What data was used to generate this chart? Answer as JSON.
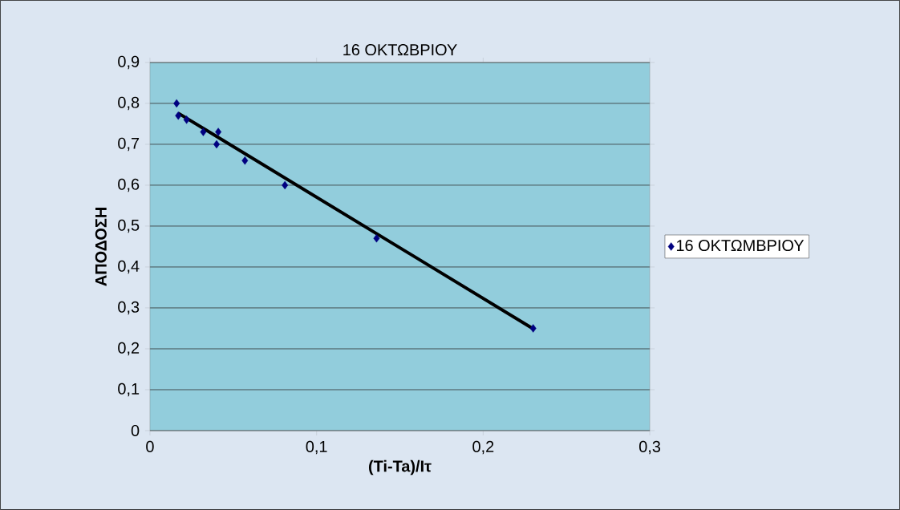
{
  "chart_data": {
    "type": "scatter",
    "title": "16 ΟΚΤΩΒΡΙΟΥ",
    "xlabel": "(Ti-Ta)/Iτ",
    "ylabel": "ΑΠΟΔΟΣΗ",
    "series": [
      {
        "name": "16 ΟΚΤΩΜΒΡΙΟΥ",
        "color": "#000080",
        "marker": "diamond",
        "x": [
          0.016,
          0.017,
          0.022,
          0.032,
          0.041,
          0.04,
          0.057,
          0.081,
          0.136,
          0.23
        ],
        "values": [
          0.8,
          0.77,
          0.76,
          0.73,
          0.73,
          0.7,
          0.66,
          0.6,
          0.47,
          0.25
        ]
      },
      {
        "type": "line",
        "color": "#000000",
        "marker": "none",
        "line_style": "solid",
        "x": [
          0.017,
          0.23
        ],
        "values": [
          0.776,
          0.249
        ]
      }
    ],
    "xlim": [
      0,
      0.3
    ],
    "xticks": [
      0,
      {
        "value": 0.1,
        "label": "0,1"
      },
      {
        "value": 0.2,
        "label": "0,2"
      },
      {
        "value": 0.3,
        "label": "0,3"
      }
    ],
    "ylim": [
      0,
      0.9
    ],
    "yticks": [
      0,
      {
        "value": 0.1,
        "label": "0,1"
      },
      {
        "value": 0.2,
        "label": "0,2"
      },
      {
        "value": 0.3,
        "label": "0,3"
      },
      {
        "value": 0.4,
        "label": "0,4"
      },
      {
        "value": 0.5,
        "label": "0,5"
      },
      {
        "value": 0.6,
        "label": "0,6"
      },
      {
        "value": 0.7,
        "label": "0,7"
      },
      {
        "value": 0.8,
        "label": "0,8"
      },
      {
        "value": 0.9,
        "label": "0,9"
      }
    ],
    "grid": "y",
    "legend": "right"
  }
}
